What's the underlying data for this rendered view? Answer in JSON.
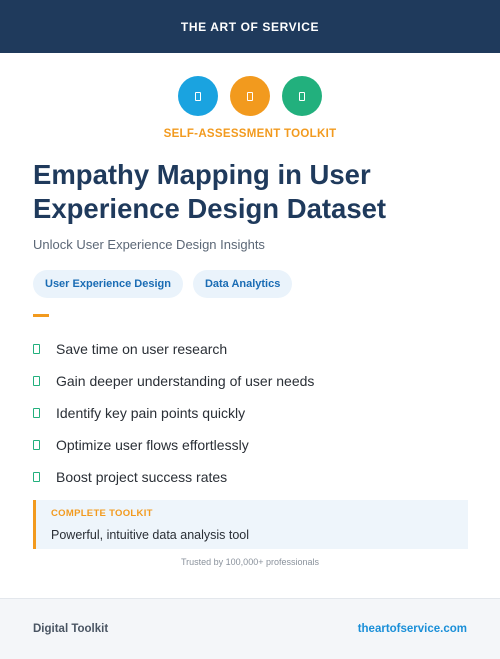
{
  "header": {
    "brand": "THE ART OF SERVICE"
  },
  "icons": [
    {
      "name": "doc-icon",
      "color": "#1aa3e0"
    },
    {
      "name": "doc-icon",
      "color": "#f29a1e"
    },
    {
      "name": "doc-icon",
      "color": "#22b07d"
    }
  ],
  "eyebrow": "SELF-ASSESSMENT TOOLKIT",
  "title": "Empathy Mapping in User Experience Design Dataset",
  "subtitle": "Unlock User Experience Design Insights",
  "tags": [
    "User Experience Design",
    "Data Analytics"
  ],
  "features": [
    "Save time on user research",
    "Gain deeper understanding of user needs",
    "Identify key pain points quickly",
    "Optimize user flows effortlessly",
    "Boost project success rates"
  ],
  "callout": {
    "label": "COMPLETE TOOLKIT",
    "text": "Powerful, intuitive data analysis tool"
  },
  "trusted": "Trusted by 100,000+ professionals",
  "footer": {
    "left": "Digital Toolkit",
    "right": "theartofservice.com"
  },
  "colors": {
    "navy": "#1f3a5c",
    "orange": "#f29a1e",
    "blue": "#1aa3e0",
    "green": "#22b07d",
    "link": "#1a8fd8"
  }
}
